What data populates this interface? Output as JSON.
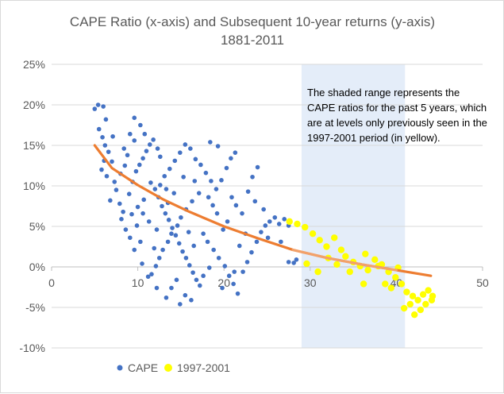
{
  "chart_data": {
    "type": "scatter",
    "title": "CAPE Ratio (x-axis) and Subsequent 10-year returns (y-axis)",
    "subtitle": "1881-2011",
    "xlim": [
      0,
      50
    ],
    "ylim": [
      -10,
      25
    ],
    "x_ticks": [
      "0",
      "10",
      "20",
      "30",
      "40",
      "50"
    ],
    "y_ticks": [
      "25%",
      "20%",
      "15%",
      "10%",
      "5%",
      "0%",
      "-5%",
      "-10%"
    ],
    "grid": "horizontal",
    "legend_position": "bottom-left",
    "shaded_range": {
      "x_start": 29,
      "x_end": 41,
      "color": "#dde9f7"
    },
    "annotation": "The shaded range represents the CAPE ratios for the past 5 years, which are at levels only previously seen in the 1997-2001 period (in yellow).",
    "series": [
      {
        "name": "CAPE",
        "color": "#4472c4",
        "points": [
          [
            5,
            19.5
          ],
          [
            5.4,
            20
          ],
          [
            6,
            19.8
          ],
          [
            6.3,
            18.2
          ],
          [
            5.5,
            17
          ],
          [
            5.9,
            16
          ],
          [
            6.2,
            15
          ],
          [
            6.6,
            14.2
          ],
          [
            7,
            13
          ],
          [
            5.8,
            12
          ],
          [
            6.4,
            11.2
          ],
          [
            7.3,
            10.5
          ],
          [
            8,
            11.5
          ],
          [
            8.5,
            12.5
          ],
          [
            8.8,
            13.8
          ],
          [
            7.5,
            9.5
          ],
          [
            6.8,
            8.2
          ],
          [
            7.9,
            7.8
          ],
          [
            8.3,
            6.8
          ],
          [
            9,
            9
          ],
          [
            9.4,
            10.5
          ],
          [
            9.8,
            11.8
          ],
          [
            10.2,
            12.6
          ],
          [
            10.6,
            13.4
          ],
          [
            11,
            14.3
          ],
          [
            11.4,
            15.1
          ],
          [
            11.8,
            15.7
          ],
          [
            12.3,
            14.6
          ],
          [
            12.6,
            13.6
          ],
          [
            10.3,
            17.5
          ],
          [
            10.8,
            16.4
          ],
          [
            9.6,
            18.4
          ],
          [
            11.5,
            10.4
          ],
          [
            12,
            9.6
          ],
          [
            12.4,
            8.6
          ],
          [
            12.8,
            7.5
          ],
          [
            13.2,
            6.6
          ],
          [
            13.6,
            5.8
          ],
          [
            14,
            4.8
          ],
          [
            14.4,
            3.9
          ],
          [
            14.8,
            2.9
          ],
          [
            15.2,
            1.9
          ],
          [
            15.6,
            1.1
          ],
          [
            16,
            0.2
          ],
          [
            16.4,
            -0.7
          ],
          [
            16.8,
            -1.6
          ],
          [
            17.2,
            -2.3
          ],
          [
            15.5,
            -3.5
          ],
          [
            14.9,
            -4.6
          ],
          [
            13.3,
            -3.8
          ],
          [
            12.2,
            -2.6
          ],
          [
            11.2,
            -1.2
          ],
          [
            10.5,
            0.4
          ],
          [
            9.6,
            2.1
          ],
          [
            9.1,
            3.6
          ],
          [
            8.6,
            4.6
          ],
          [
            8.1,
            5.9
          ],
          [
            9.3,
            6.5
          ],
          [
            10,
            7.4
          ],
          [
            10.7,
            8.3
          ],
          [
            13.1,
            11.2
          ],
          [
            13.7,
            12.1
          ],
          [
            14.3,
            13.1
          ],
          [
            14.9,
            14.1
          ],
          [
            15.5,
            15.1
          ],
          [
            16.1,
            14.6
          ],
          [
            16.7,
            13.3
          ],
          [
            17.3,
            12.6
          ],
          [
            17.9,
            11.6
          ],
          [
            18.5,
            10.6
          ],
          [
            19.1,
            9.6
          ],
          [
            19.7,
            10.7
          ],
          [
            20.3,
            12.2
          ],
          [
            20.8,
            13.4
          ],
          [
            21.3,
            14.1
          ],
          [
            18.4,
            15.4
          ],
          [
            19.3,
            14.9
          ],
          [
            17.1,
            9.1
          ],
          [
            16.3,
            8.1
          ],
          [
            15.6,
            7.1
          ],
          [
            15,
            6.1
          ],
          [
            14.6,
            5.1
          ],
          [
            13.9,
            4.1
          ],
          [
            13.5,
            3.1
          ],
          [
            12.9,
            2.1
          ],
          [
            12.5,
            1.1
          ],
          [
            12.1,
            0.1
          ],
          [
            11.6,
            -0.9
          ],
          [
            17.6,
            4.1
          ],
          [
            18.1,
            3.1
          ],
          [
            18.8,
            2.1
          ],
          [
            19.4,
            1.1
          ],
          [
            20.1,
            0.1
          ],
          [
            20.6,
            -1.1
          ],
          [
            21.1,
            -2.1
          ],
          [
            21.6,
            -3.3
          ],
          [
            22.2,
            -0.6
          ],
          [
            22.7,
            0.6
          ],
          [
            23.2,
            1.8
          ],
          [
            23.8,
            3.1
          ],
          [
            24.3,
            4.3
          ],
          [
            24.8,
            5.1
          ],
          [
            25.3,
            5.6
          ],
          [
            25.9,
            6.1
          ],
          [
            26.4,
            5.3
          ],
          [
            27,
            5.9
          ],
          [
            27.5,
            5.1
          ],
          [
            24.6,
            7.1
          ],
          [
            23.6,
            8.1
          ],
          [
            22.8,
            9.3
          ],
          [
            23.3,
            11.1
          ],
          [
            23.9,
            12.3
          ],
          [
            22.1,
            6.6
          ],
          [
            21.4,
            7.6
          ],
          [
            20.9,
            8.6
          ],
          [
            20.4,
            5.6
          ],
          [
            19.9,
            4.6
          ],
          [
            19.2,
            6.6
          ],
          [
            18.7,
            7.6
          ],
          [
            21.8,
            2.6
          ],
          [
            16.5,
            2.6
          ],
          [
            15.9,
            4.3
          ],
          [
            14.2,
            9.1
          ],
          [
            13.5,
            7.9
          ],
          [
            12.2,
            4.6
          ],
          [
            11.3,
            5.6
          ],
          [
            10.6,
            6.6
          ],
          [
            9.9,
            5.1
          ],
          [
            10.3,
            3.1
          ],
          [
            11.9,
            2.3
          ],
          [
            14.5,
            -1.6
          ],
          [
            13.9,
            -2.6
          ],
          [
            16.2,
            -4.1
          ],
          [
            17.6,
            -1.1
          ],
          [
            18.3,
            -0.1
          ],
          [
            19.8,
            -2.6
          ],
          [
            21.2,
            -0.6
          ],
          [
            25.1,
            3.6
          ],
          [
            26.6,
            3.1
          ],
          [
            7.1,
            16.1
          ],
          [
            6.1,
            13.1
          ],
          [
            8.4,
            14.6
          ],
          [
            9.1,
            16.4
          ],
          [
            9.6,
            15.6
          ],
          [
            12.6,
            10.1
          ],
          [
            13.3,
            9.6
          ],
          [
            15.3,
            11.1
          ],
          [
            16.6,
            10.6
          ],
          [
            18.2,
            8.6
          ],
          [
            22.5,
            4.1
          ],
          [
            27.5,
            0.6
          ],
          [
            28.1,
            0.5
          ],
          [
            28.4,
            0.9
          ]
        ]
      },
      {
        "name": "1997-2001",
        "color": "#ffff00",
        "points": [
          [
            27.6,
            5.6
          ],
          [
            28.5,
            5.3
          ],
          [
            29.4,
            4.9
          ],
          [
            30.3,
            4.1
          ],
          [
            31.1,
            3.3
          ],
          [
            31.9,
            2.5
          ],
          [
            32.8,
            3.6
          ],
          [
            33.6,
            2.1
          ],
          [
            34.1,
            1.3
          ],
          [
            35,
            0.6
          ],
          [
            35.8,
            0.1
          ],
          [
            36.7,
            -0.4
          ],
          [
            37.5,
            0.9
          ],
          [
            38.3,
            0.3
          ],
          [
            39.1,
            -0.6
          ],
          [
            39.9,
            -1.3
          ],
          [
            40.6,
            -2.1
          ],
          [
            41.2,
            -3.1
          ],
          [
            41.9,
            -3.6
          ],
          [
            42.5,
            -4.1
          ],
          [
            43.1,
            -3.4
          ],
          [
            43.7,
            -2.9
          ],
          [
            44.2,
            -3.6
          ],
          [
            41.6,
            -4.6
          ],
          [
            42.8,
            -5.3
          ],
          [
            40.9,
            -5.1
          ],
          [
            39.4,
            -2.6
          ],
          [
            36.2,
            -2.1
          ],
          [
            34.6,
            -0.6
          ],
          [
            33.1,
            0.3
          ],
          [
            32.1,
            1.1
          ],
          [
            30.9,
            -0.6
          ],
          [
            29.6,
            0.4
          ],
          [
            36.4,
            1.6
          ],
          [
            37.9,
            0.1
          ],
          [
            43.4,
            -4.6
          ],
          [
            42.1,
            -5.9
          ],
          [
            44.1,
            -4.1
          ],
          [
            40.2,
            -0.1
          ],
          [
            38.7,
            -2.1
          ]
        ]
      }
    ],
    "trendline": {
      "type": "power",
      "color": "#ed7d31",
      "x_range": [
        5,
        44
      ],
      "points": [
        [
          5,
          15
        ],
        [
          7,
          12.2
        ],
        [
          10,
          10.1
        ],
        [
          13,
          8.3
        ],
        [
          16,
          6.8
        ],
        [
          20,
          5
        ],
        [
          24,
          3.5
        ],
        [
          28,
          2.1
        ],
        [
          32,
          1.1
        ],
        [
          36,
          0.3
        ],
        [
          40,
          -0.4
        ],
        [
          44,
          -1.1
        ]
      ]
    }
  }
}
